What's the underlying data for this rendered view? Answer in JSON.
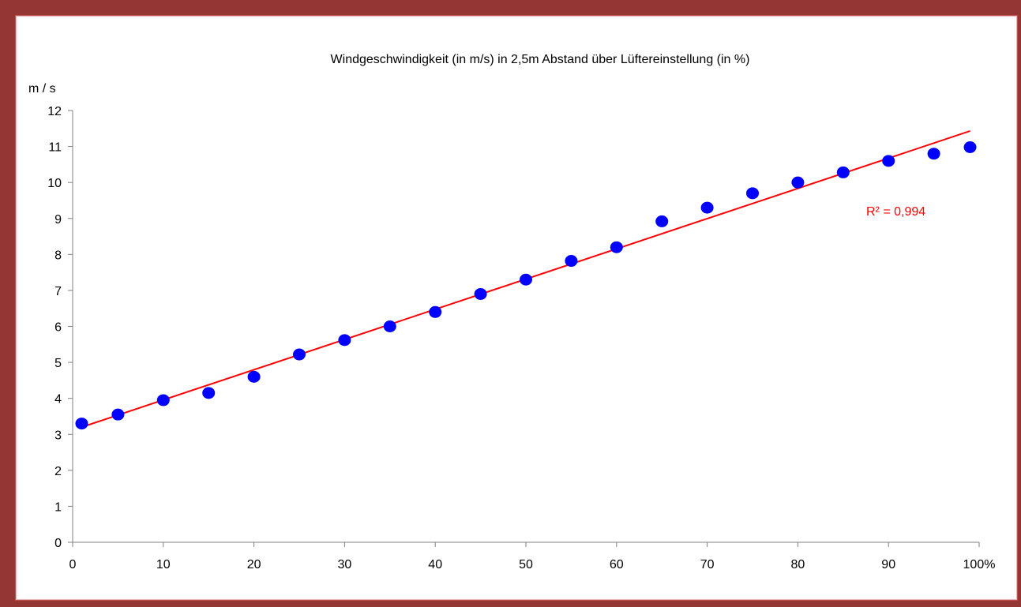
{
  "colors": {
    "frame": "#943634",
    "background": "#ffffff",
    "points": "#0000ff",
    "trendline": "#ff0000",
    "axis": "#808080"
  },
  "chart_data": {
    "type": "scatter",
    "title": "Windgeschwindigkeit (in m/s) in 2,5m Abstand über Lüftereinstellung (in %)",
    "xlabel": "",
    "ylabel": "m / s",
    "xlim": [
      0,
      100
    ],
    "ylim": [
      0,
      12
    ],
    "x_ticks": [
      0,
      10,
      20,
      30,
      40,
      50,
      60,
      70,
      80,
      90,
      100
    ],
    "x_tick_labels": [
      "0",
      "10",
      "20",
      "30",
      "40",
      "50",
      "60",
      "70",
      "80",
      "90",
      "100%"
    ],
    "y_ticks": [
      0,
      1,
      2,
      3,
      4,
      5,
      6,
      7,
      8,
      9,
      10,
      11,
      12
    ],
    "y_tick_labels": [
      "0",
      "1",
      "2",
      "3",
      "4",
      "5",
      "6",
      "7",
      "8",
      "9",
      "10",
      "11",
      "12"
    ],
    "grid": false,
    "series": [
      {
        "x": [
          1,
          5,
          10,
          15,
          20,
          25,
          30,
          35,
          40,
          45,
          50,
          55,
          60,
          65,
          70,
          75,
          80,
          85,
          90,
          95,
          99
        ],
        "y": [
          3.3,
          3.55,
          3.95,
          4.15,
          4.6,
          5.22,
          5.62,
          6.0,
          6.4,
          6.9,
          7.3,
          7.82,
          8.2,
          8.92,
          9.3,
          9.7,
          10.0,
          10.28,
          10.6,
          10.8,
          10.98
        ]
      }
    ],
    "trendline": {
      "type": "linear",
      "x": [
        1,
        99
      ],
      "y": [
        3.2,
        11.43
      ],
      "annotation": "R² = 0,994"
    }
  }
}
